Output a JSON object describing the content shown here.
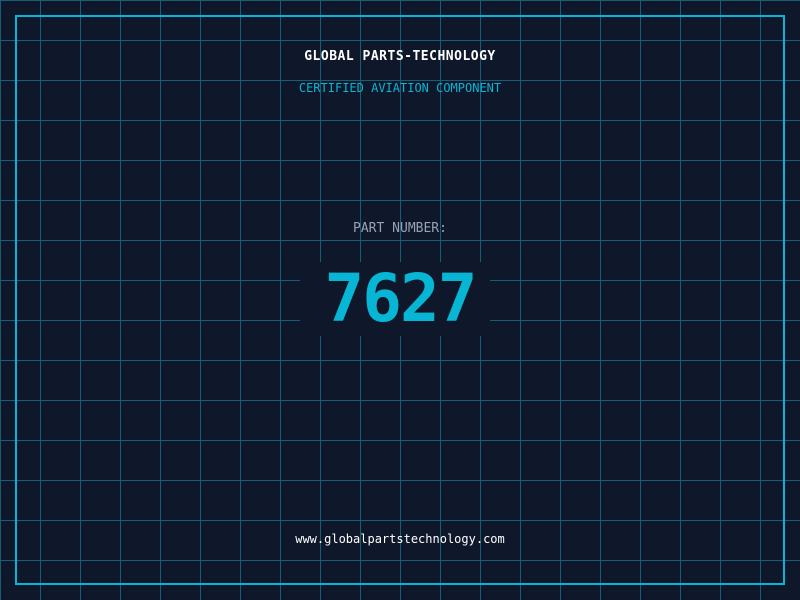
{
  "company": "GLOBAL PARTS-TECHNOLOGY",
  "subtitle": "CERTIFIED AVIATION COMPONENT",
  "part_label": "PART NUMBER:",
  "part_number": "7627",
  "website": "www.globalpartstechnology.com",
  "colors": {
    "background": "#0f172a",
    "grid": "#155e75",
    "accent": "#06b6d4"
  }
}
